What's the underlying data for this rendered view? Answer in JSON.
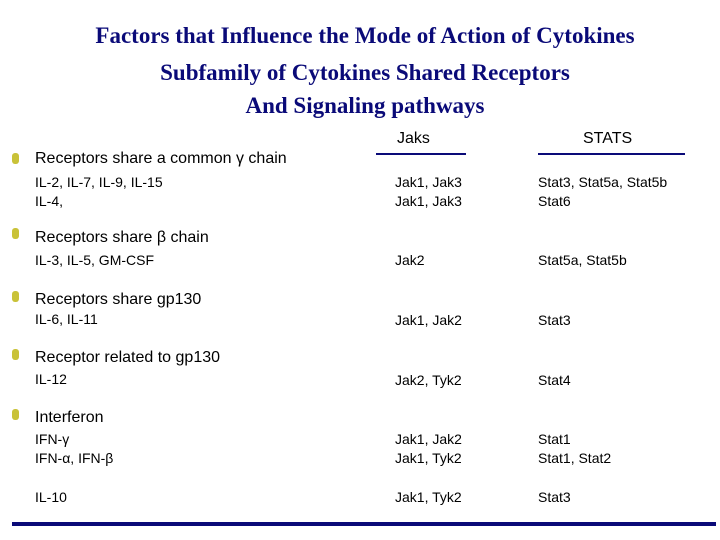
{
  "title": {
    "line1": "Factors that Influence the Mode of Action of Cytokines",
    "line2": "Subfamily of Cytokines Shared Receptors",
    "line3": "And Signaling pathways"
  },
  "headers": {
    "jaks": "Jaks",
    "stats": "STATS"
  },
  "colors": {
    "title": "#0a0a78",
    "bullet": "#c9c238",
    "rule": "#0a0a78"
  },
  "groups": [
    {
      "label": "Receptors share a common γ chain",
      "cytokines": "IL-2, IL-7, IL-9, IL-15\nIL-4,",
      "jaks": "Jak1, Jak3\nJak1, Jak3",
      "stats": "Stat3, Stat5a, Stat5b\nStat6"
    },
    {
      "label": "Receptors share β chain",
      "cytokines": "IL-3, IL-5, GM-CSF",
      "jaks": "Jak2",
      "stats": "Stat5a, Stat5b"
    },
    {
      "label": "Receptors share gp130",
      "cytokines": "IL-6, IL-11",
      "jaks": "Jak1, Jak2",
      "stats": "Stat3"
    },
    {
      "label": "Receptor related to gp130",
      "cytokines": "IL-12",
      "jaks": "Jak2, Tyk2",
      "stats": "Stat4"
    },
    {
      "label": "Interferon",
      "cytokines": "IFN-γ\nIFN-α, IFN-β",
      "jaks": "Jak1, Jak2\nJak1, Tyk2",
      "stats": "Stat1\nStat1, Stat2"
    }
  ],
  "extra_row": {
    "cytokines": "IL-10",
    "jaks": "Jak1, Tyk2",
    "stats": "Stat3"
  }
}
